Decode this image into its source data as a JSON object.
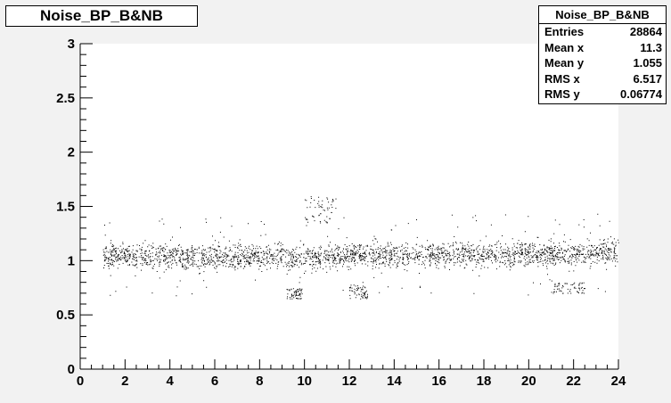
{
  "histogram": {
    "title": "Noise_BP_B&NB",
    "stats": {
      "title": "Noise_BP_B&NB",
      "rows": [
        {
          "label": "Entries",
          "value": "28864"
        },
        {
          "label": "Mean x",
          "value": "11.3"
        },
        {
          "label": "Mean y",
          "value": "1.055"
        },
        {
          "label": "RMS x",
          "value": "6.517"
        },
        {
          "label": "RMS y",
          "value": "0.06774"
        }
      ]
    }
  },
  "chart_data": {
    "type": "scatter",
    "title": "Noise_BP_B&NB",
    "xlim": [
      0,
      24
    ],
    "ylim": [
      0,
      3
    ],
    "x_ticks": [
      "0",
      "2",
      "4",
      "6",
      "8",
      "10",
      "12",
      "14",
      "16",
      "18",
      "20",
      "22",
      "24"
    ],
    "y_ticks": [
      "0",
      "0.5",
      "1",
      "1.5",
      "2",
      "2.5",
      "3"
    ],
    "grid": false,
    "series": [
      {
        "x_range": [
          1,
          24
        ],
        "band_center_y": [
          {
            "x": 1,
            "y": 1.05
          },
          {
            "x": 3,
            "y": 1.05
          },
          {
            "x": 5,
            "y": 1.03
          },
          {
            "x": 7,
            "y": 1.04
          },
          {
            "x": 9,
            "y": 1.04
          },
          {
            "x": 10.5,
            "y": 1.03
          },
          {
            "x": 12,
            "y": 1.06
          },
          {
            "x": 14,
            "y": 1.05
          },
          {
            "x": 16,
            "y": 1.06
          },
          {
            "x": 18,
            "y": 1.06
          },
          {
            "x": 20,
            "y": 1.06
          },
          {
            "x": 22,
            "y": 1.07
          },
          {
            "x": 24,
            "y": 1.08
          }
        ],
        "band_half_width": 0.1,
        "outlier_clusters": [
          {
            "x": [
              9.2,
              9.9
            ],
            "y": [
              0.65,
              0.75
            ]
          },
          {
            "x": [
              10.0,
              11.4
            ],
            "y": [
              1.35,
              1.6
            ]
          },
          {
            "x": [
              12.0,
              12.8
            ],
            "y": [
              0.65,
              0.78
            ]
          },
          {
            "x": [
              21.0,
              22.5
            ],
            "y": [
              0.7,
              0.8
            ]
          }
        ]
      }
    ]
  }
}
